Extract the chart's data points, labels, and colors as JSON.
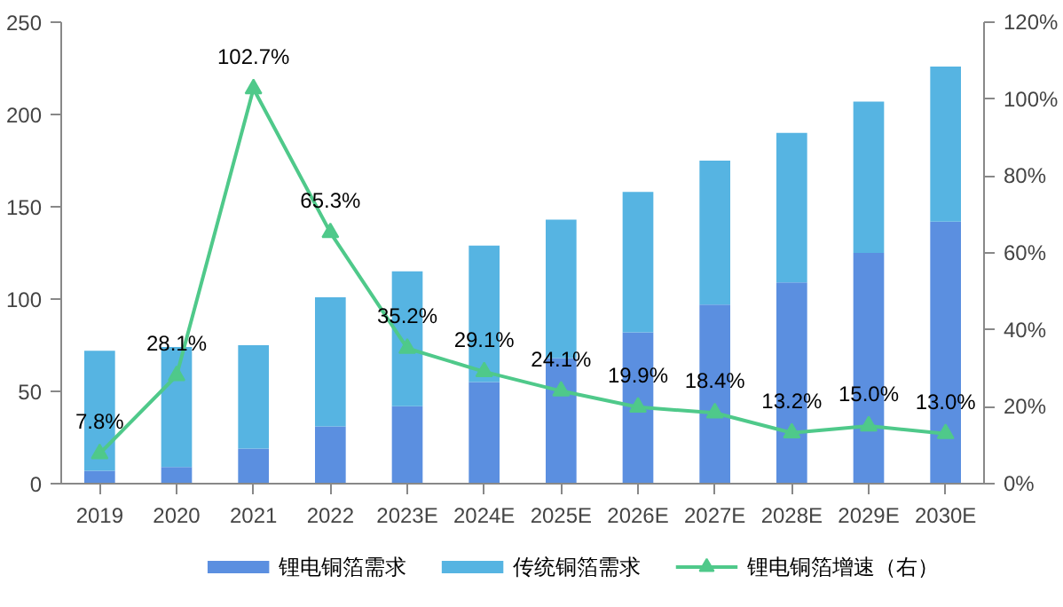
{
  "chart_data": {
    "type": "bar",
    "stacked": true,
    "categories": [
      "2019",
      "2020",
      "2021",
      "2022",
      "2023E",
      "2024E",
      "2025E",
      "2026E",
      "2027E",
      "2028E",
      "2029E",
      "2030E"
    ],
    "series": [
      {
        "name": "锂电铜箔需求",
        "color": "#5b8fe0",
        "values": [
          7,
          9,
          19,
          31,
          42,
          55,
          68,
          82,
          97,
          109,
          125,
          142
        ]
      },
      {
        "name": "传统铜箔需求",
        "color": "#56b4e2",
        "values": [
          65,
          65,
          56,
          70,
          73,
          74,
          75,
          76,
          78,
          81,
          82,
          84
        ]
      },
      {
        "name": "锂电铜箔增速（右）",
        "type": "line",
        "axis": "y2",
        "color": "#4fc98a",
        "marker": "triangle",
        "data_labels": true,
        "values": [
          7.8,
          28.1,
          102.7,
          65.3,
          35.2,
          29.1,
          24.1,
          19.9,
          18.4,
          13.2,
          15.0,
          13.0
        ],
        "value_labels": [
          "7.8%",
          "28.1%",
          "102.7%",
          "65.3%",
          "35.2%",
          "29.1%",
          "24.1%",
          "19.9%",
          "18.4%",
          "13.2%",
          "15.0%",
          "13.0%"
        ]
      }
    ],
    "ylim": [
      0,
      250
    ],
    "yticks": [
      0,
      50,
      100,
      150,
      200,
      250
    ],
    "y2lim": [
      0,
      120
    ],
    "y2ticks": [
      {
        "value": 0,
        "label": "0%"
      },
      {
        "value": 20,
        "label": "20%"
      },
      {
        "value": 40,
        "label": "40%"
      },
      {
        "value": 60,
        "label": "60%"
      },
      {
        "value": 80,
        "label": "80%"
      },
      {
        "value": 100,
        "label": "100%"
      },
      {
        "value": 120,
        "label": "120%"
      }
    ],
    "grid": false,
    "legend": "bottom"
  }
}
